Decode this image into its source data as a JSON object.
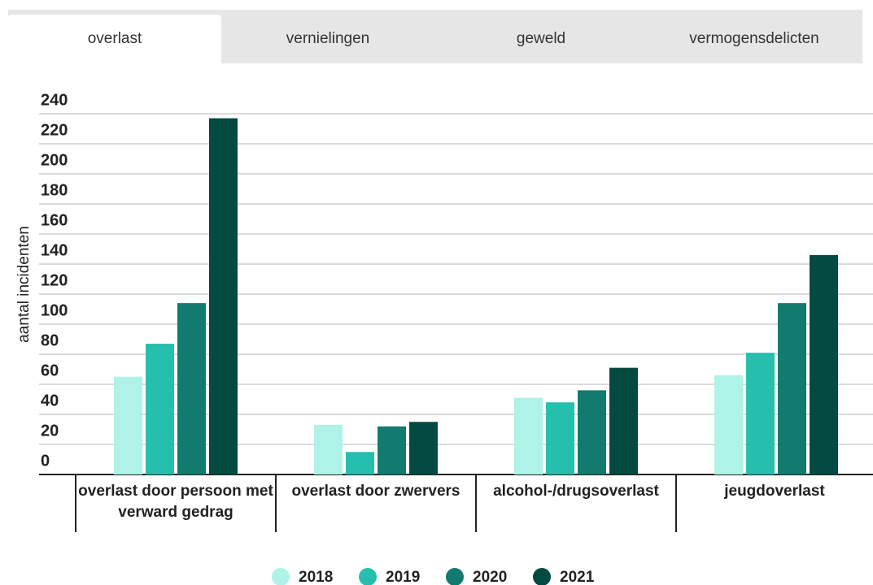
{
  "tabs": [
    "overlast",
    "vernielingen",
    "geweld",
    "vermogensdelicten"
  ],
  "chart_data": {
    "type": "bar",
    "y_label": "aantal incidenten",
    "categories": [
      "overlast door persoon met verward gedrag",
      "overlast door zwervers",
      "alcohol-/drugsoverlast",
      "jeugdoverlast"
    ],
    "series": [
      {
        "name": "2018",
        "color": "#aef2e8",
        "values": [
          65,
          33,
          51,
          66
        ]
      },
      {
        "name": "2019",
        "color": "#26bfad",
        "values": [
          87,
          15,
          48,
          81
        ]
      },
      {
        "name": "2020",
        "color": "#127a6e",
        "values": [
          114,
          32,
          56,
          114
        ]
      },
      {
        "name": "2021",
        "color": "#034a40",
        "values": [
          237,
          35,
          71,
          146
        ]
      }
    ],
    "ylim": [
      0,
      240
    ],
    "yticks": [
      0,
      20,
      40,
      60,
      80,
      100,
      120,
      140,
      160,
      180,
      200,
      220,
      240
    ],
    "grid": true
  }
}
